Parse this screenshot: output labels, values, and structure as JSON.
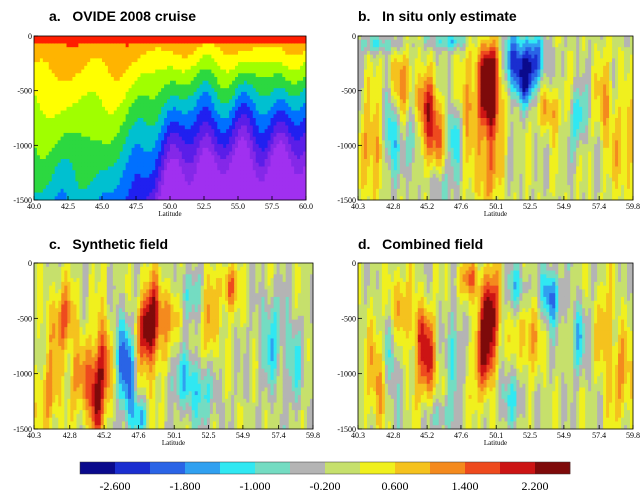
{
  "chart_data": [
    {
      "type": "heatmap",
      "panel_label": "a.",
      "title": "OVIDE 2008 cruise",
      "xlabel": "Latitude",
      "x_ticks": [
        "40.0",
        "42.5",
        "45.0",
        "47.5",
        "50.0",
        "52.5",
        "55.0",
        "57.5",
        "60.0"
      ],
      "xlim": [
        40.0,
        60.0
      ],
      "y_ticks": [
        "0",
        "-500",
        "-1000",
        "-1500"
      ],
      "ylim": [
        -1500,
        0
      ],
      "colormap": "rainbow"
    },
    {
      "type": "heatmap",
      "panel_label": "b.",
      "title": "In situ only estimate",
      "xlabel": "Latitude",
      "x_ticks": [
        "40.3",
        "42.8",
        "45.2",
        "47.6",
        "50.1",
        "52.5",
        "54.9",
        "57.4",
        "59.8"
      ],
      "xlim": [
        40.3,
        59.8
      ],
      "y_ticks": [
        "0",
        "-500",
        "-1000",
        "-1500"
      ],
      "ylim": [
        -1500,
        0
      ]
    },
    {
      "type": "heatmap",
      "panel_label": "c.",
      "title": "Synthetic field",
      "xlabel": "Latitude",
      "x_ticks": [
        "40.3",
        "42.8",
        "45.2",
        "47.6",
        "50.1",
        "52.5",
        "54.9",
        "57.4",
        "59.8"
      ],
      "xlim": [
        40.3,
        59.8
      ],
      "y_ticks": [
        "0",
        "-500",
        "-1000",
        "-1500"
      ],
      "ylim": [
        -1500,
        0
      ]
    },
    {
      "type": "heatmap",
      "panel_label": "d.",
      "title": "Combined field",
      "xlabel": "Latitude",
      "x_ticks": [
        "40.3",
        "42.8",
        "45.2",
        "47.6",
        "50.1",
        "52.5",
        "54.9",
        "57.4",
        "59.8"
      ],
      "xlim": [
        40.3,
        59.8
      ],
      "y_ticks": [
        "0",
        "-500",
        "-1000",
        "-1500"
      ],
      "ylim": [
        -1500,
        0
      ]
    }
  ],
  "colorbar": {
    "tick_labels": [
      "-2.600",
      "-1.800",
      "-1.000",
      "-0.200",
      "0.600",
      "1.400",
      "2.200"
    ],
    "colors": [
      "#0a0a8c",
      "#1a2ed0",
      "#2a64e6",
      "#30a0f0",
      "#30e8f2",
      "#74dcc2",
      "#b4b4b4",
      "#c6e06c",
      "#f0f01e",
      "#f5c21e",
      "#f48a1e",
      "#ee4a1e",
      "#cc1414",
      "#7e0a0a"
    ]
  },
  "colors": {
    "anomaly": [
      "#0a0a8c",
      "#1a2ed0",
      "#2a64e6",
      "#30a0f0",
      "#30e8f2",
      "#74dcc2",
      "#b4b4b4",
      "#c6e06c",
      "#f0f01e",
      "#f5c21e",
      "#f48a1e",
      "#ee4a1e",
      "#cc1414",
      "#7e0a0a"
    ],
    "rainbow": [
      "#ff1e00",
      "#ffb400",
      "#ffff00",
      "#a0ff00",
      "#2cd840",
      "#00c0d0",
      "#0070ff",
      "#2020f0",
      "#5a1ee8",
      "#8428e8",
      "#a030f0"
    ]
  }
}
